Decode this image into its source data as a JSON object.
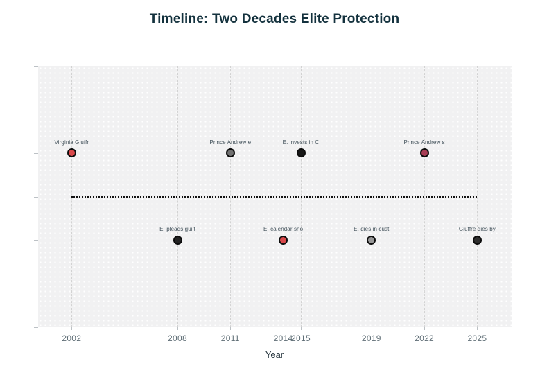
{
  "chart_data": {
    "type": "scatter",
    "title": "Timeline: Two Decades Elite Protection",
    "xlabel": "Year",
    "x_ticks": [
      2002,
      2008,
      2011,
      2014,
      2015,
      2019,
      2022,
      2025
    ],
    "x_range": [
      2000.1,
      2026.95
    ],
    "y_range": [
      -3,
      3
    ],
    "y_tick_values": [
      -3,
      -2,
      -1,
      0,
      1,
      2,
      3
    ],
    "grid": "vertical-dashed",
    "legend": "none",
    "baseline": {
      "y": 0,
      "from_year": 2002,
      "to_year": 2025,
      "style": "dotted-black"
    },
    "events": [
      {
        "label": "Virginia Giuffr",
        "year": 2002,
        "y": 1,
        "color": "#d9484a"
      },
      {
        "label": "E. pleads guilt",
        "year": 2008,
        "y": -1,
        "color": "#242424"
      },
      {
        "label": "Prince Andrew e",
        "year": 2011,
        "y": 1,
        "color": "#717171"
      },
      {
        "label": "E. calendar sho",
        "year": 2014,
        "y": -1,
        "color": "#d9484a"
      },
      {
        "label": "E. invests in C",
        "year": 2015,
        "y": 1,
        "color": "#171717"
      },
      {
        "label": "E. dies in cust",
        "year": 2019,
        "y": -1,
        "color": "#979797"
      },
      {
        "label": "Prince Andrew s",
        "year": 2022,
        "y": 1,
        "color": "#a83e55"
      },
      {
        "label": "Giuffre dies by",
        "year": 2025,
        "y": -1,
        "color": "#2e2e2e"
      }
    ],
    "colors": {
      "title": "#14323e",
      "plot_background": "#f1f1f2",
      "tick_label": "#5f6e76",
      "event_label": "#44535c",
      "dot_outline": "#0d0d0d"
    }
  }
}
